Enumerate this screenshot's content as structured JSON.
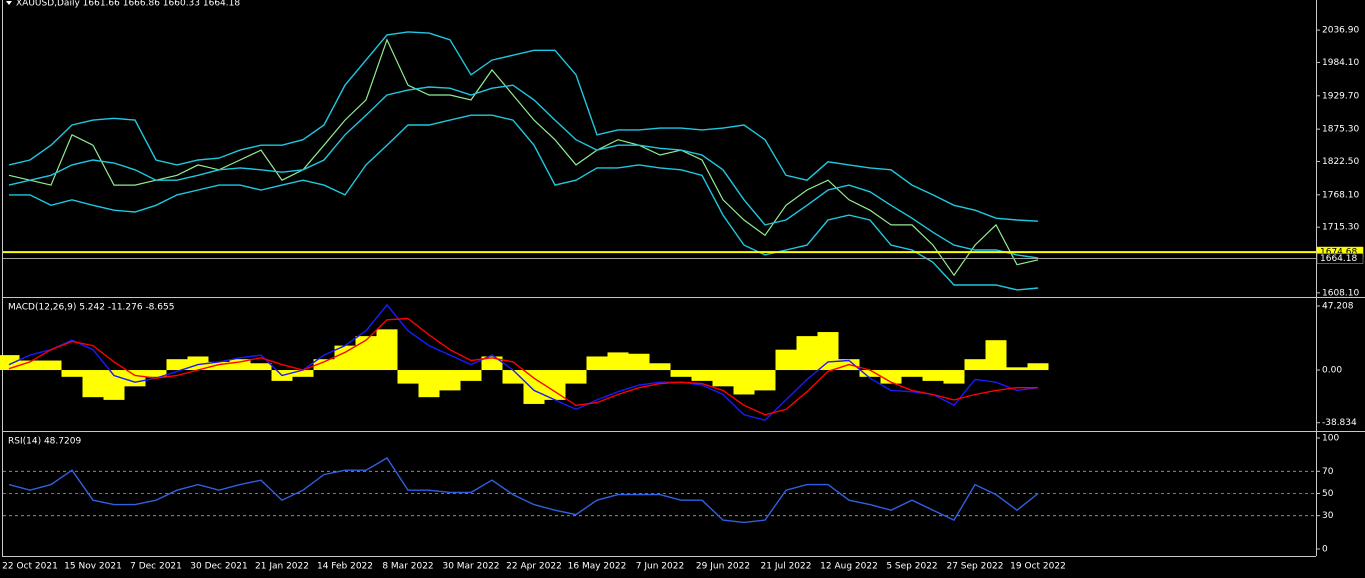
{
  "chart_data": [
    {
      "type": "line",
      "title": "XAUUSD,Daily 1661.66 1666.86 1660.33 1664.18",
      "ylim": [
        1603,
        2086
      ],
      "yticks": [
        {
          "value": 2036.9,
          "label": "2036.90"
        },
        {
          "value": 1984.1,
          "label": "1984.10"
        },
        {
          "value": 1929.7,
          "label": "1929.70"
        },
        {
          "value": 1875.3,
          "label": "1875.30"
        },
        {
          "value": 1822.5,
          "label": "1822.50"
        },
        {
          "value": 1768.1,
          "label": "1768.10"
        },
        {
          "value": 1715.3,
          "label": "1715.30"
        },
        {
          "value": 1608.1,
          "label": "1608.10"
        }
      ],
      "hlines": [
        {
          "value": 1674.68,
          "color": "#ffff00"
        },
        {
          "value": 1664.18,
          "color": "#a0a0a0"
        }
      ],
      "series": [
        {
          "color": "#90ee90",
          "values": [
            1800,
            1792,
            1784,
            1866,
            1849,
            1784,
            1784,
            1792,
            1800,
            1817,
            1809,
            1825,
            1841,
            1792,
            1809,
            1849,
            1890,
            1923,
            2021,
            1947,
            1931,
            1931,
            1923,
            1972,
            1931,
            1890,
            1858,
            1817,
            1841,
            1858,
            1849,
            1833,
            1841,
            1825,
            1760,
            1727,
            1702,
            1751,
            1776,
            1792,
            1760,
            1743,
            1719,
            1719,
            1686,
            1637,
            1686,
            1719,
            1654,
            1662
          ]
        },
        {
          "color": "#1ec8e0",
          "values": [
            1817,
            1825,
            1849,
            1882,
            1890,
            1893,
            1890,
            1825,
            1817,
            1825,
            1828,
            1841,
            1849,
            1849,
            1858,
            1882,
            1947,
            1988,
            2029,
            2034,
            2032,
            2021,
            1964,
            1988,
            1996,
            2004,
            2004,
            1964,
            1866,
            1874,
            1874,
            1877,
            1877,
            1874,
            1877,
            1882,
            1858,
            1800,
            1792,
            1822,
            1817,
            1812,
            1809,
            1784,
            1768,
            1751,
            1743,
            1730,
            1727,
            1725
          ]
        },
        {
          "color": "#1ec8e0",
          "values": [
            1784,
            1792,
            1800,
            1817,
            1825,
            1820,
            1809,
            1792,
            1792,
            1800,
            1809,
            1812,
            1809,
            1805,
            1809,
            1825,
            1866,
            1898,
            1931,
            1939,
            1944,
            1942,
            1931,
            1942,
            1947,
            1923,
            1890,
            1858,
            1841,
            1849,
            1849,
            1844,
            1841,
            1833,
            1809,
            1760,
            1719,
            1727,
            1751,
            1776,
            1784,
            1773,
            1751,
            1730,
            1707,
            1686,
            1678,
            1678,
            1670,
            1665
          ]
        },
        {
          "color": "#1ec8e0",
          "values": [
            1768,
            1768,
            1751,
            1760,
            1751,
            1743,
            1740,
            1751,
            1768,
            1776,
            1784,
            1784,
            1776,
            1784,
            1792,
            1784,
            1768,
            1817,
            1849,
            1882,
            1882,
            1890,
            1898,
            1898,
            1890,
            1849,
            1784,
            1792,
            1812,
            1812,
            1817,
            1812,
            1809,
            1800,
            1735,
            1686,
            1670,
            1678,
            1686,
            1727,
            1735,
            1727,
            1686,
            1678,
            1658,
            1621,
            1621,
            1621,
            1613,
            1616
          ]
        }
      ]
    },
    {
      "type": "bar",
      "title": "MACD(12,26,9) 5.242 -11.276 -8.655",
      "ylim": [
        -44.2,
        53.1
      ],
      "yticks": [
        47.208,
        {
          "value": 0,
          "label": "0.00"
        },
        -38.834
      ],
      "color": "#ffff00",
      "values": [
        11,
        7,
        7,
        -5,
        -20,
        -22,
        -12,
        -5,
        8,
        10,
        6,
        8,
        5,
        -8,
        -5,
        8,
        18,
        25,
        30,
        -10,
        -20,
        -15,
        -8,
        10,
        -10,
        -25,
        -22,
        -10,
        10,
        13,
        12,
        5,
        -5,
        -8,
        -12,
        -18,
        -15,
        15,
        25,
        28,
        8,
        -5,
        -10,
        -5,
        -8,
        -10,
        8,
        22,
        2,
        5
      ],
      "series": [
        {
          "color": "#1a1aff",
          "values": [
            4,
            11,
            15,
            22,
            15,
            -4,
            -9,
            -6,
            -1,
            4,
            6,
            9,
            11,
            -4,
            0,
            11,
            18,
            29,
            48,
            29,
            18,
            11,
            4,
            11,
            0,
            -15,
            -22,
            -29,
            -22,
            -16,
            -11,
            -9,
            -9,
            -11,
            -18,
            -33,
            -37,
            -22,
            -7,
            6,
            7,
            -6,
            -15,
            -16,
            -18,
            -26,
            -7,
            -9,
            -15,
            -13
          ]
        },
        {
          "color": "#ff0000",
          "values": [
            1,
            6,
            15,
            21,
            18,
            6,
            -4,
            -6,
            -4,
            0,
            4,
            6,
            9,
            4,
            0,
            6,
            13,
            22,
            37,
            38,
            26,
            15,
            7,
            9,
            6,
            -6,
            -16,
            -26,
            -24,
            -18,
            -13,
            -10,
            -9,
            -10,
            -15,
            -26,
            -33,
            -29,
            -16,
            -1,
            4,
            0,
            -9,
            -15,
            -18,
            -22,
            -18,
            -15,
            -13,
            -13
          ]
        }
      ]
    },
    {
      "type": "line",
      "title": "RSI(14) 48.7209",
      "ylim": [
        -6.3,
        105.4
      ],
      "yticks": [
        100,
        70,
        50,
        30,
        0
      ],
      "levels": [
        70,
        50,
        30
      ],
      "series": [
        {
          "color": "#3060e0",
          "values": [
            58,
            53,
            58,
            71,
            44,
            40,
            40,
            44,
            53,
            58,
            53,
            58,
            62,
            44,
            53,
            67,
            71,
            71,
            82,
            53,
            53,
            51,
            51,
            62,
            49,
            40,
            35,
            31,
            44,
            49,
            49,
            49,
            44,
            44,
            26,
            24,
            26,
            53,
            58,
            58,
            44,
            40,
            35,
            44,
            35,
            26,
            58,
            49,
            35,
            50
          ]
        }
      ],
      "categories": [
        null,
        "22 Oct 2021",
        null,
        null,
        "15 Nov 2021",
        null,
        null,
        "7 Dec 2021",
        null,
        null,
        "30 Dec 2021",
        null,
        null,
        "21 Jan 2022",
        null,
        null,
        "14 Feb 2022",
        null,
        null,
        "8 Mar 2022",
        null,
        null,
        "30 Mar 2022",
        null,
        null,
        "22 Apr 2022",
        null,
        null,
        "16 May 2022",
        null,
        null,
        "7 Jun 2022",
        null,
        null,
        "29 Jun 2022",
        null,
        null,
        "21 Jul 2022",
        null,
        null,
        "12 Aug 2022",
        null,
        null,
        "5 Sep 2022",
        null,
        null,
        "27 Sep 2022",
        null,
        null,
        "19 Oct 2022"
      ]
    }
  ]
}
